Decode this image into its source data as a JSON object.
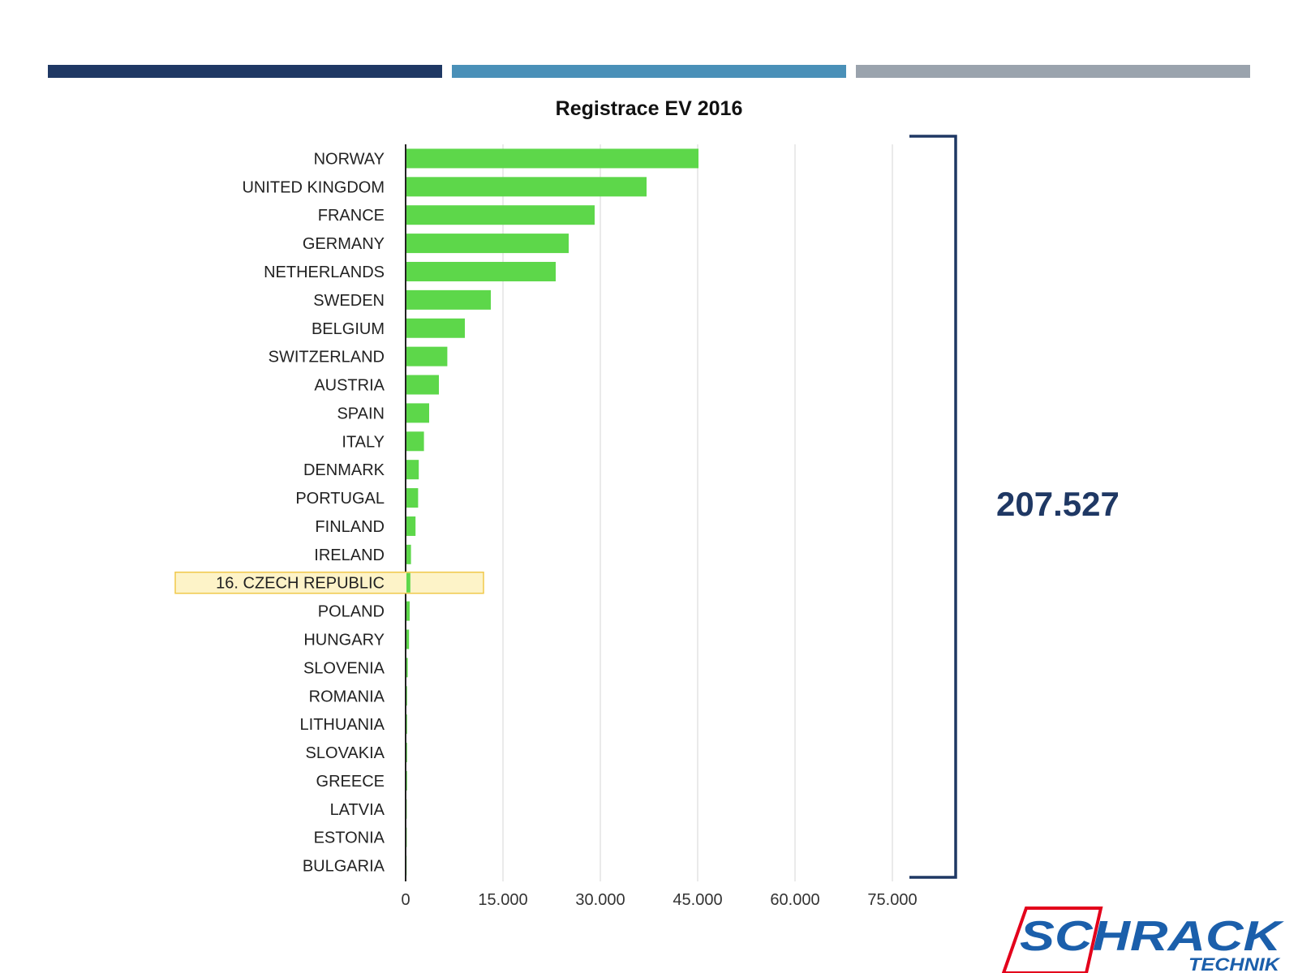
{
  "header_stripes": {
    "colors": [
      "#1f3864",
      "#4a90b8",
      "#9aa3ad"
    ]
  },
  "total": {
    "value": "207.527",
    "color": "#1f3864"
  },
  "highlight": {
    "category": "CZECH REPUBLIC",
    "label": "16. CZECH REPUBLIC",
    "fill": "#fdf3c8",
    "stroke": "#f0c84a"
  },
  "logo": {
    "brand": "SCHRACK",
    "sub": "TECHNIK",
    "colors": {
      "text": "#1b5fab",
      "outline": "#e3001b"
    }
  },
  "chart_data": {
    "type": "bar",
    "orientation": "horizontal",
    "title": "Registrace EV 2016",
    "xlabel": "",
    "ylabel": "",
    "xlim": [
      0,
      75000
    ],
    "ticks": [
      0,
      15000,
      30000,
      45000,
      60000,
      75000
    ],
    "tick_labels": [
      "0",
      "15.000",
      "30.000",
      "45.000",
      "60.000",
      "75.000"
    ],
    "grid": true,
    "bar_color": "#5dd74a",
    "categories": [
      "NORWAY",
      "UNITED KINGDOM",
      "FRANCE",
      "GERMANY",
      "NETHERLANDS",
      "SWEDEN",
      "BELGIUM",
      "SWITZERLAND",
      "AUSTRIA",
      "SPAIN",
      "ITALY",
      "DENMARK",
      "PORTUGAL",
      "FINLAND",
      "IRELAND",
      "CZECH REPUBLIC",
      "POLAND",
      "HUNGARY",
      "SLOVENIA",
      "ROMANIA",
      "LITHUANIA",
      "SLOVAKIA",
      "GREECE",
      "LATVIA",
      "ESTONIA",
      "BULGARIA"
    ],
    "values": [
      45000,
      37000,
      29000,
      25000,
      23000,
      13000,
      9000,
      6300,
      5000,
      3500,
      2700,
      1900,
      1800,
      1400,
      700,
      600,
      500,
      400,
      200,
      100,
      100,
      100,
      100,
      50,
      50,
      30
    ]
  }
}
